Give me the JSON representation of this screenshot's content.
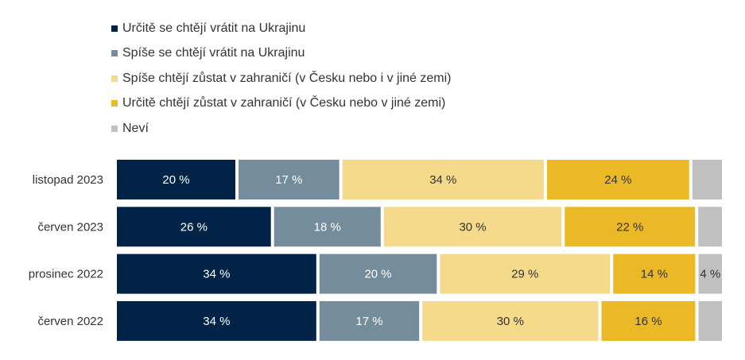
{
  "chart_data": {
    "type": "bar",
    "orientation": "horizontal",
    "stacked": true,
    "categories": [
      "listopad 2023",
      "červen 2023",
      "prosinec 2022",
      "červen 2022"
    ],
    "series": [
      {
        "name": "Určitě se chtějí vrátit na Ukrajinu",
        "color": "#012348",
        "values": [
          20,
          26,
          34,
          34
        ],
        "labels": [
          "20 %",
          "26 %",
          "34 %",
          "34 %"
        ]
      },
      {
        "name": "Spíše se chtějí vrátit na Ukrajinu",
        "color": "#758c9c",
        "values": [
          17,
          18,
          20,
          17
        ],
        "labels": [
          "17 %",
          "18 %",
          "20 %",
          "17 %"
        ]
      },
      {
        "name": "Spíše chtějí zůstat v zahraničí (v Česku nebo i v jiné zemi)",
        "color": "#f5da8c",
        "values": [
          34,
          30,
          29,
          30
        ],
        "labels": [
          "34 %",
          "30 %",
          "29 %",
          "30 %"
        ]
      },
      {
        "name": "Určitě chtějí zůstat v zahraničí (v Česku nebo v jiné zemi)",
        "color": "#ebb826",
        "values": [
          24,
          22,
          14,
          16
        ],
        "labels": [
          "24 %",
          "22 %",
          "14 %",
          "16 %"
        ]
      },
      {
        "name": "Neví",
        "color": "#c0c0c0",
        "values": [
          5,
          4,
          4,
          4
        ],
        "labels": [
          "",
          "",
          "4 %",
          ""
        ]
      }
    ],
    "legend_position": "top-left",
    "grid": false
  }
}
